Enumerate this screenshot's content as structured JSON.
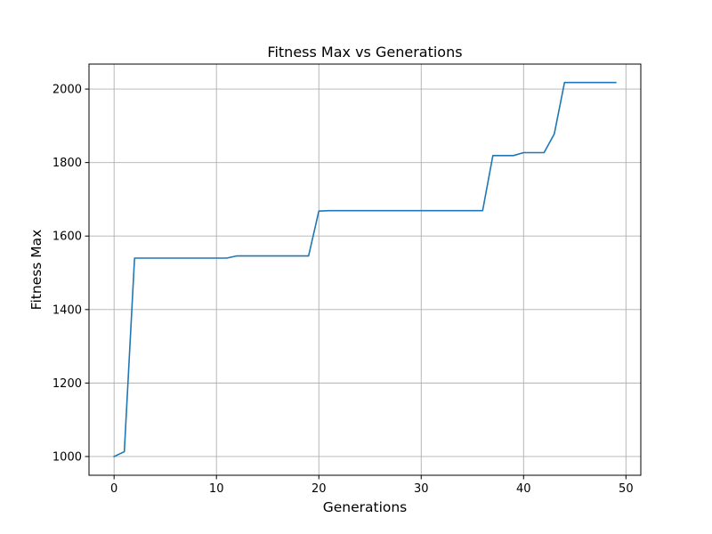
{
  "chart_data": {
    "type": "line",
    "title": "Fitness Max vs Generations",
    "xlabel": "Generations",
    "ylabel": "Fitness Max",
    "xlim": [
      -2.45,
      51.45
    ],
    "ylim": [
      949,
      2068
    ],
    "xticks": [
      0,
      10,
      20,
      30,
      40,
      50
    ],
    "yticks": [
      1000,
      1200,
      1400,
      1600,
      1800,
      2000
    ],
    "grid": true,
    "color": "#1f77b4",
    "series": [
      {
        "x": [
          0,
          1,
          2,
          3,
          4,
          5,
          6,
          7,
          8,
          9,
          10,
          11,
          12,
          13,
          14,
          15,
          16,
          17,
          18,
          19,
          20,
          21,
          22,
          23,
          24,
          25,
          26,
          27,
          28,
          29,
          30,
          31,
          32,
          33,
          34,
          35,
          36,
          37,
          38,
          39,
          40,
          41,
          42,
          43,
          44,
          45,
          46,
          47,
          48,
          49
        ],
        "values": [
          1000,
          1013,
          1540,
          1540,
          1540,
          1540,
          1540,
          1540,
          1540,
          1540,
          1540,
          1540,
          1546,
          1546,
          1546,
          1546,
          1546,
          1546,
          1546,
          1546,
          1668,
          1669,
          1669,
          1669,
          1669,
          1669,
          1669,
          1669,
          1669,
          1669,
          1669,
          1669,
          1669,
          1669,
          1669,
          1669,
          1669,
          1819,
          1819,
          1819,
          1827,
          1827,
          1827,
          1878,
          2018,
          2018,
          2018,
          2018,
          2018,
          2018
        ]
      }
    ]
  }
}
